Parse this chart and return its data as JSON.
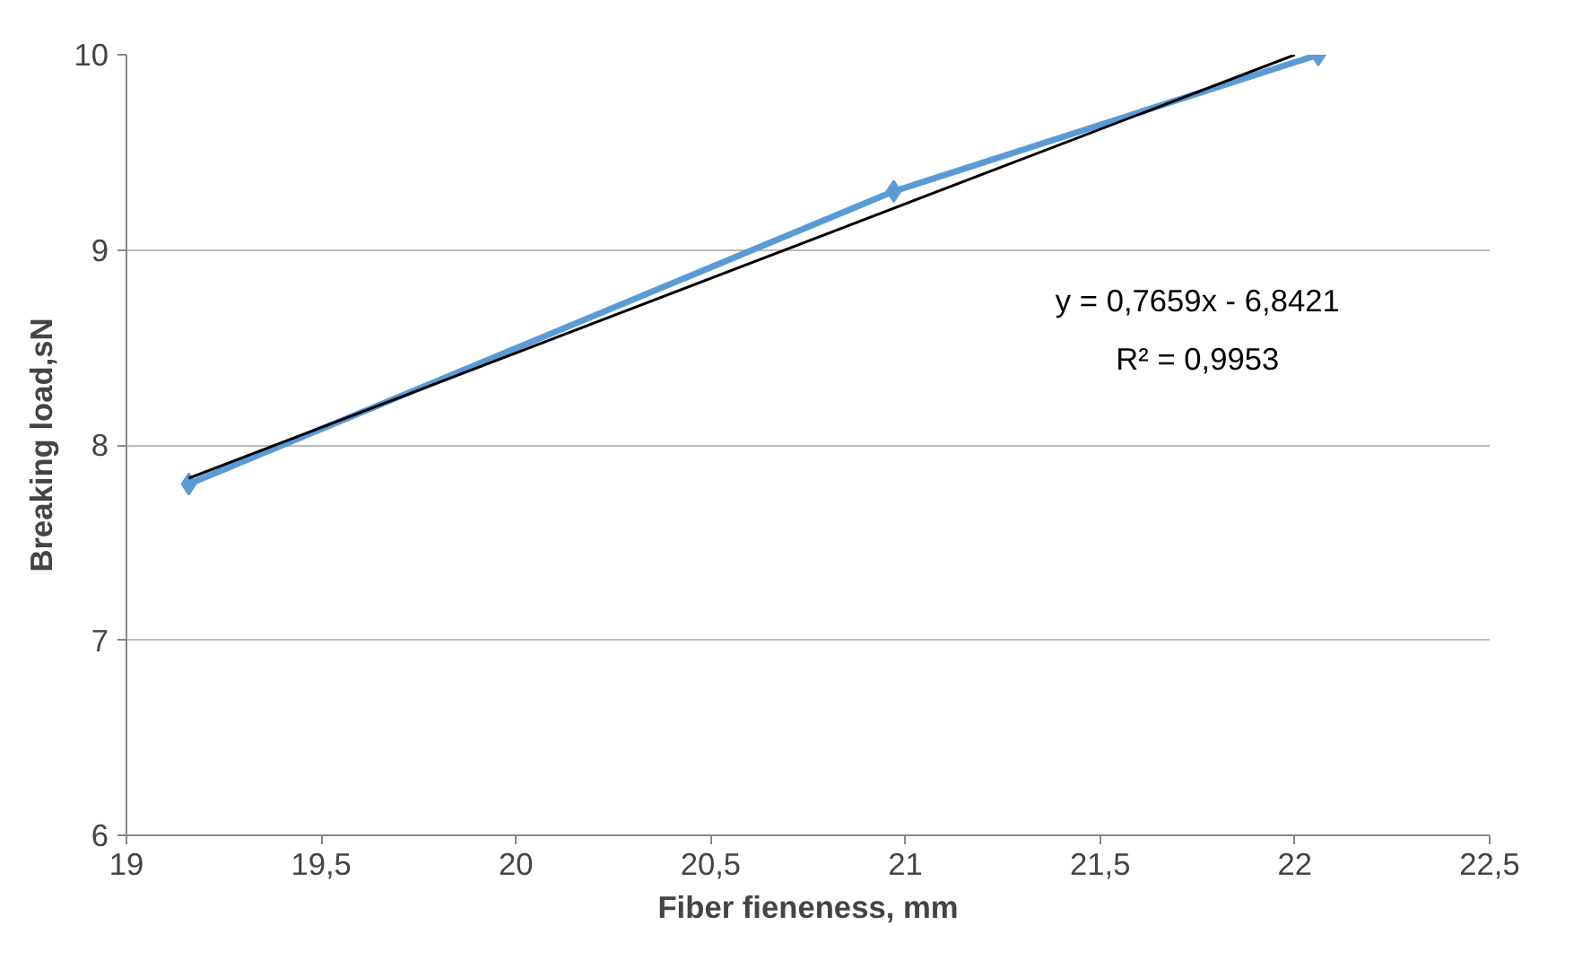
{
  "chart_data": {
    "type": "line",
    "xlabel": "Fiber fieneness, mm",
    "ylabel": "Breaking load,sN",
    "xlim": [
      19,
      22.5
    ],
    "ylim": [
      6,
      10
    ],
    "xticks": [
      19,
      {
        "value": 19.5,
        "label": "19,5"
      },
      20,
      {
        "value": 20.5,
        "label": "20,5"
      },
      21,
      {
        "value": 21.5,
        "label": "21,5"
      },
      22,
      {
        "value": 22.5,
        "label": "22,5"
      }
    ],
    "yticks": [
      6,
      7,
      8,
      9,
      10
    ],
    "grid": "y",
    "series": [
      {
        "x": [
          19.16,
          20.97,
          22.06
        ],
        "values": [
          7.8,
          9.3,
          10.0
        ],
        "color": "#5b9bd5",
        "marker": "diamond"
      },
      {
        "x": [
          19.16,
          22.0
        ],
        "values": [
          7.83,
          10.0
        ],
        "color": "#000000",
        "marker": "none"
      }
    ],
    "annotations": [
      "y = 0,7659x - 6,8421",
      "R² = 0,9953"
    ]
  }
}
